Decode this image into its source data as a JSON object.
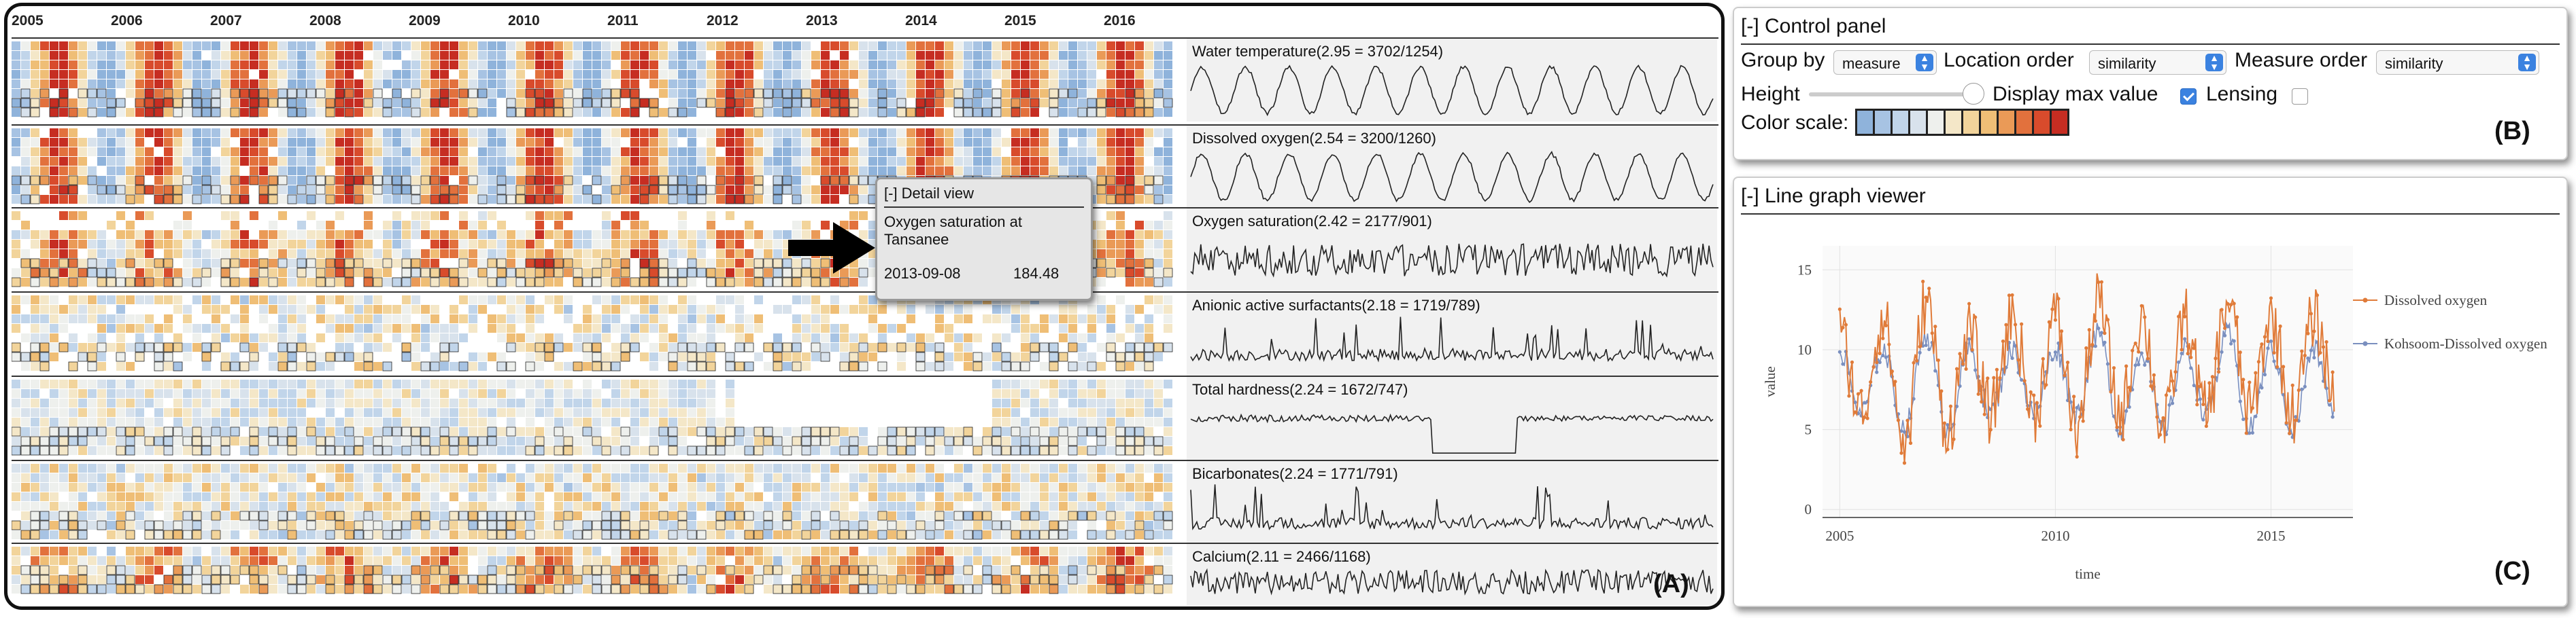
{
  "heatmap": {
    "years": [
      "2005",
      "2006",
      "2007",
      "2008",
      "2009",
      "2010",
      "2011",
      "2012",
      "2013",
      "2014",
      "2015",
      "2016"
    ],
    "badge": "(A)",
    "rows": [
      {
        "label": "Water temperature(2.95 = 3702/1254)",
        "pattern": "seasonal",
        "flat": false,
        "gap": null
      },
      {
        "label": "Dissolved oxygen(2.54 = 3200/1260)",
        "pattern": "seasonal",
        "flat": false,
        "gap": null
      },
      {
        "label": "Oxygen saturation(2.42 = 2177/901)",
        "pattern": "noisy",
        "flat": false,
        "gap": null
      },
      {
        "label": "Anionic active surfactants(2.18 = 1719/789)",
        "pattern": "spiky",
        "flat": false,
        "gap": null
      },
      {
        "label": "Total hardness(2.24 = 1672/747)",
        "pattern": "flat",
        "flat": true,
        "gap": [
          0.62,
          0.84
        ]
      },
      {
        "label": "Bicarbonates(2.24 = 1771/791)",
        "pattern": "spiky",
        "flat": false,
        "gap": null
      },
      {
        "label": "Calcium(2.11 = 2466/1168)",
        "pattern": "noisy",
        "flat": false,
        "gap": null
      }
    ]
  },
  "detail_view": {
    "title": "[-] Detail view",
    "location": "Oxygen saturation at Tansanee",
    "date": "2013-09-08",
    "value": "184.48"
  },
  "control_panel": {
    "title": "[-] Control panel",
    "group_by_label": "Group by",
    "group_by_value": "measure",
    "location_order_label": "Location order",
    "location_order_value": "similarity",
    "measure_order_label": "Measure order",
    "measure_order_value": "similarity",
    "height_label": "Height",
    "display_max_label": "Display max value",
    "display_max_checked": true,
    "lensing_label": "Lensing",
    "lensing_checked": false,
    "color_scale_label": "Color scale:",
    "color_scale": [
      "#8fb3db",
      "#a7c3e3",
      "#c1d5ea",
      "#d8e2ec",
      "#eef0ed",
      "#f4e7c8",
      "#f2d49b",
      "#efbe76",
      "#ea9a57",
      "#e2713d",
      "#d84b2c",
      "#c62d22"
    ],
    "badge": "(B)"
  },
  "line_graph_viewer": {
    "title": "[-] Line graph viewer",
    "badge": "(C)",
    "chart_data": {
      "type": "line",
      "xlabel": "time",
      "ylabel": "value",
      "xlim": [
        2004.6,
        2016.9
      ],
      "ylim": [
        -0.5,
        16.5
      ],
      "xticks": [
        2005,
        2010,
        2015
      ],
      "yticks": [
        0,
        5,
        10,
        15
      ],
      "legend_position": "top-right",
      "series": [
        {
          "name": "Dissolved oxygen",
          "color": "#e07b39",
          "x": [
            2005,
            2005.5,
            2006,
            2006.5,
            2007,
            2007.5,
            2008,
            2008.5,
            2009,
            2009.5,
            2010,
            2010.5,
            2011,
            2011.5,
            2012,
            2012.5,
            2013,
            2013.5,
            2014,
            2014.5,
            2015,
            2015.5,
            2016,
            2016.5
          ],
          "y": [
            11,
            6,
            12,
            4,
            13,
            5,
            11,
            6,
            12,
            6,
            12,
            5,
            13,
            6,
            12,
            5,
            12,
            6,
            13,
            6,
            12,
            6,
            12,
            7
          ]
        },
        {
          "name": "Kohsoom-Dissolved oxygen",
          "color": "#7a8fbf",
          "x": [
            2005,
            2005.5,
            2006,
            2006.5,
            2007,
            2007.5,
            2008,
            2008.5,
            2009,
            2009.5,
            2010,
            2010.5,
            2011,
            2011.5,
            2012,
            2012.5,
            2013,
            2013.5,
            2014,
            2014.5,
            2015,
            2015.5,
            2016,
            2016.5
          ],
          "y": [
            10,
            6,
            10,
            5,
            11,
            5,
            10,
            6,
            10,
            6,
            10,
            6,
            11,
            5,
            10,
            5,
            10,
            6,
            11,
            5,
            10,
            5,
            10,
            6
          ]
        }
      ]
    }
  }
}
